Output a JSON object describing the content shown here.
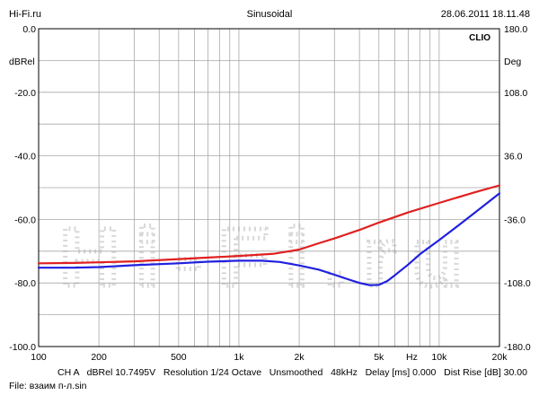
{
  "header": {
    "site": "Hi-Fi.ru",
    "mode": "Sinusoidal",
    "datetime": "28.06.2011 18.11.48"
  },
  "brand": "CLIO",
  "watermark": "Hi-Fi.ru",
  "footer": {
    "info": "CH A   dBRel 10.7495V   Resolution 1/24 Octave   Unsmoothed   48kHz   Delay [ms] 0.000   Dist Rise [dB] 30.00",
    "file": "File: взаим п-л.sin"
  },
  "chart_data": {
    "type": "line",
    "xscale": "log",
    "xlim": [
      100,
      20000
    ],
    "ylim": [
      -100,
      0
    ],
    "ylim_right": [
      -180,
      180
    ],
    "ylabel": "dBRel",
    "ylabel_right": "Deg",
    "xlabel": "Hz",
    "grid": true,
    "xticks": [
      {
        "v": 100,
        "label": "100"
      },
      {
        "v": 200,
        "label": "200"
      },
      {
        "v": 500,
        "label": "500"
      },
      {
        "v": 1000,
        "label": "1k"
      },
      {
        "v": 2000,
        "label": "2k"
      },
      {
        "v": 5000,
        "label": "5k"
      },
      {
        "v": 10000,
        "label": "10k"
      },
      {
        "v": 20000,
        "label": "20k"
      }
    ],
    "yticks": [
      {
        "v": 0,
        "label": "0.0"
      },
      {
        "v": -20,
        "label": "-20.0"
      },
      {
        "v": -40,
        "label": "-40.0"
      },
      {
        "v": -60,
        "label": "-60.0"
      },
      {
        "v": -80,
        "label": "-80.0"
      },
      {
        "v": -100,
        "label": "-100.0"
      }
    ],
    "yticks_right": [
      {
        "v": 0,
        "label": "180.0"
      },
      {
        "v": -20,
        "label": "108.0"
      },
      {
        "v": -40,
        "label": "36.0"
      },
      {
        "v": -60,
        "label": "-36.0"
      },
      {
        "v": -80,
        "label": "-108.0"
      },
      {
        "v": -100,
        "label": "-180.0"
      }
    ],
    "series": [
      {
        "color": "#e02020",
        "x": [
          100,
          150,
          200,
          300,
          500,
          700,
          1000,
          1500,
          2000,
          2500,
          3000,
          4000,
          5000,
          7000,
          10000,
          15000,
          20000
        ],
        "y": [
          -73.8,
          -73.7,
          -73.5,
          -73.2,
          -72.5,
          -72.0,
          -71.5,
          -70.8,
          -69.5,
          -67.5,
          -66.0,
          -63.3,
          -61.0,
          -57.8,
          -54.8,
          -51.5,
          -49.3
        ]
      },
      {
        "color": "#2020e0",
        "x": [
          100,
          150,
          200,
          300,
          500,
          700,
          1000,
          1300,
          1600,
          2000,
          2500,
          3000,
          3500,
          4000,
          4500,
          5000,
          5500,
          6000,
          7000,
          8000,
          10000,
          12000,
          15000,
          20000
        ],
        "y": [
          -75.2,
          -75.2,
          -75.0,
          -74.4,
          -73.8,
          -73.3,
          -73.0,
          -73.0,
          -73.4,
          -74.5,
          -75.8,
          -77.4,
          -78.8,
          -80.0,
          -80.7,
          -80.6,
          -79.4,
          -77.6,
          -74.2,
          -71.0,
          -66.5,
          -62.7,
          -58.0,
          -51.8
        ]
      }
    ]
  }
}
